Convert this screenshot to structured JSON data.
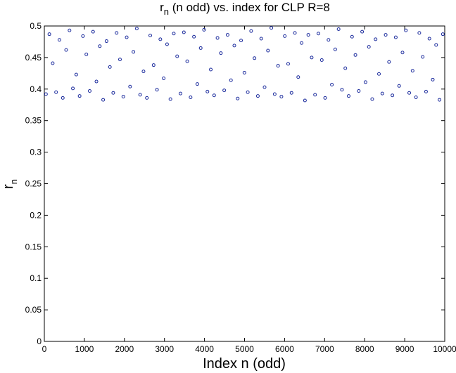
{
  "chart_data": {
    "type": "scatter",
    "title": {
      "symbol": "r",
      "subscript": "n",
      "text": " (n odd) vs. index for CLP R=8"
    },
    "x_label": "Index n (odd)",
    "y_label": {
      "symbol": "r",
      "subscript": "n"
    },
    "color": "#1a2a9c",
    "xlim": [
      0,
      10000
    ],
    "xticks": [
      0,
      1000,
      2000,
      3000,
      4000,
      5000,
      6000,
      7000,
      8000,
      9000,
      10000
    ],
    "ylim": [
      0,
      0.5
    ],
    "yticks": [
      0,
      0.05,
      0.1,
      0.15,
      0.2,
      0.25,
      0.3,
      0.35,
      0.4,
      0.45,
      0.5
    ],
    "x": [
      41,
      125,
      209,
      293,
      377,
      461,
      545,
      629,
      713,
      797,
      881,
      965,
      1049,
      1133,
      1217,
      1301,
      1385,
      1469,
      1553,
      1637,
      1721,
      1805,
      1889,
      1973,
      2057,
      2141,
      2225,
      2309,
      2393,
      2477,
      2561,
      2645,
      2729,
      2813,
      2897,
      2981,
      3065,
      3149,
      3233,
      3317,
      3401,
      3485,
      3569,
      3653,
      3737,
      3821,
      3905,
      3989,
      4073,
      4157,
      4241,
      4325,
      4409,
      4493,
      4577,
      4661,
      4745,
      4829,
      4913,
      4997,
      5081,
      5165,
      5249,
      5333,
      5417,
      5501,
      5585,
      5669,
      5753,
      5837,
      5921,
      6005,
      6089,
      6173,
      6257,
      6341,
      6425,
      6509,
      6593,
      6677,
      6761,
      6845,
      6929,
      7013,
      7097,
      7181,
      7265,
      7349,
      7433,
      7517,
      7601,
      7685,
      7769,
      7853,
      7937,
      8021,
      8105,
      8189,
      8273,
      8357,
      8441,
      8525,
      8609,
      8693,
      8777,
      8861,
      8945,
      9029,
      9113,
      9197,
      9281,
      9365,
      9449,
      9533,
      9617,
      9701,
      9785,
      9869,
      9953
    ],
    "values": [
      0.392,
      0.487,
      0.441,
      0.395,
      0.478,
      0.386,
      0.462,
      0.493,
      0.401,
      0.423,
      0.389,
      0.484,
      0.455,
      0.397,
      0.491,
      0.412,
      0.468,
      0.383,
      0.476,
      0.435,
      0.394,
      0.489,
      0.447,
      0.388,
      0.482,
      0.404,
      0.459,
      0.496,
      0.391,
      0.428,
      0.386,
      0.485,
      0.438,
      0.399,
      0.479,
      0.417,
      0.471,
      0.384,
      0.488,
      0.452,
      0.393,
      0.49,
      0.444,
      0.387,
      0.483,
      0.408,
      0.465,
      0.494,
      0.396,
      0.431,
      0.39,
      0.481,
      0.457,
      0.398,
      0.486,
      0.414,
      0.469,
      0.385,
      0.477,
      0.426,
      0.395,
      0.492,
      0.449,
      0.389,
      0.48,
      0.403,
      0.461,
      0.497,
      0.392,
      0.437,
      0.388,
      0.484,
      0.44,
      0.394,
      0.489,
      0.419,
      0.473,
      0.382,
      0.486,
      0.45,
      0.391,
      0.488,
      0.446,
      0.386,
      0.478,
      0.407,
      0.463,
      0.495,
      0.399,
      0.433,
      0.389,
      0.483,
      0.454,
      0.397,
      0.491,
      0.411,
      0.467,
      0.384,
      0.479,
      0.424,
      0.393,
      0.486,
      0.443,
      0.39,
      0.482,
      0.405,
      0.458,
      0.493,
      0.394,
      0.429,
      0.387,
      0.489,
      0.451,
      0.396,
      0.48,
      0.415,
      0.47,
      0.383,
      0.487
    ]
  }
}
